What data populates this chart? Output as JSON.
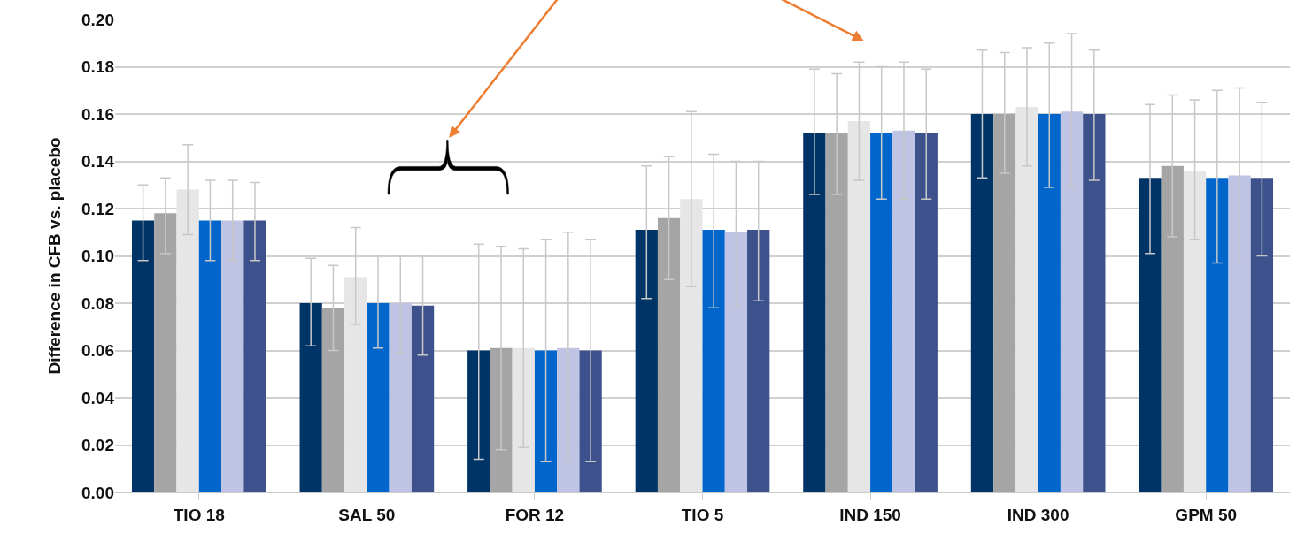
{
  "chart_data": {
    "type": "bar",
    "ylabel": "Difference in CFB vs. placebo",
    "categories": [
      "TIO 18",
      "SAL 50",
      "FOR 12",
      "TIO 5",
      "IND 150",
      "IND 300",
      "GPM 50"
    ],
    "series": [
      {
        "color": "#003366",
        "values": [
          0.115,
          0.08,
          0.06,
          0.111,
          0.152,
          0.16,
          0.133
        ],
        "errors": [
          [
            0.098,
            0.13
          ],
          [
            0.062,
            0.099
          ],
          [
            0.014,
            0.105
          ],
          [
            0.082,
            0.138
          ],
          [
            0.126,
            0.179
          ],
          [
            0.133,
            0.187
          ],
          [
            0.101,
            0.164
          ]
        ]
      },
      {
        "color": "#a5a5a5",
        "values": [
          0.118,
          0.078,
          0.061,
          0.116,
          0.152,
          0.16,
          0.138
        ],
        "errors": [
          [
            0.101,
            0.133
          ],
          [
            0.06,
            0.096
          ],
          [
            0.018,
            0.104
          ],
          [
            0.09,
            0.142
          ],
          [
            0.126,
            0.177
          ],
          [
            0.135,
            0.186
          ],
          [
            0.108,
            0.168
          ]
        ]
      },
      {
        "color": "#e6e6e6",
        "values": [
          0.128,
          0.091,
          0.061,
          0.124,
          0.157,
          0.163,
          0.136
        ],
        "errors": [
          [
            0.109,
            0.147
          ],
          [
            0.071,
            0.112
          ],
          [
            0.019,
            0.103
          ],
          [
            0.087,
            0.161
          ],
          [
            0.132,
            0.182
          ],
          [
            0.138,
            0.188
          ],
          [
            0.107,
            0.166
          ]
        ]
      },
      {
        "color": "#0066cc",
        "values": [
          0.115,
          0.08,
          0.06,
          0.111,
          0.152,
          0.16,
          0.133
        ],
        "errors": [
          [
            0.098,
            0.132
          ],
          [
            0.061,
            0.1
          ],
          [
            0.013,
            0.107
          ],
          [
            0.078,
            0.143
          ],
          [
            0.124,
            0.18
          ],
          [
            0.129,
            0.19
          ],
          [
            0.097,
            0.17
          ]
        ]
      },
      {
        "color": "#c0c4e4",
        "values": [
          0.115,
          0.08,
          0.061,
          0.11,
          0.153,
          0.161,
          0.134
        ],
        "errors": [
          [
            0.098,
            0.132
          ],
          [
            0.059,
            0.1
          ],
          [
            0.013,
            0.11
          ],
          [
            0.078,
            0.14
          ],
          [
            0.124,
            0.182
          ],
          [
            0.129,
            0.194
          ],
          [
            0.097,
            0.171
          ]
        ]
      },
      {
        "color": "#3d518c",
        "values": [
          0.115,
          0.079,
          0.06,
          0.111,
          0.152,
          0.16,
          0.133
        ],
        "errors": [
          [
            0.098,
            0.131
          ],
          [
            0.058,
            0.1
          ],
          [
            0.013,
            0.107
          ],
          [
            0.081,
            0.14
          ],
          [
            0.124,
            0.179
          ],
          [
            0.132,
            0.187
          ],
          [
            0.1,
            0.165
          ]
        ]
      }
    ],
    "ylim": [
      0,
      0.2
    ],
    "yticks": [
      {
        "value": 0,
        "label": "0.00"
      },
      {
        "value": 0.02,
        "label": "0.02"
      },
      {
        "value": 0.04,
        "label": "0.04"
      },
      {
        "value": 0.06,
        "label": "0.06"
      },
      {
        "value": 0.08,
        "label": "0.08"
      },
      {
        "value": 0.1,
        "label": "0.10"
      },
      {
        "value": 0.12,
        "label": "0.12"
      },
      {
        "value": 0.14,
        "label": "0.14"
      },
      {
        "value": 0.16,
        "label": "0.16"
      },
      {
        "value": 0.18,
        "label": "0.18"
      },
      {
        "value": 0.2,
        "label": "0.20"
      }
    ],
    "grid": "y"
  }
}
